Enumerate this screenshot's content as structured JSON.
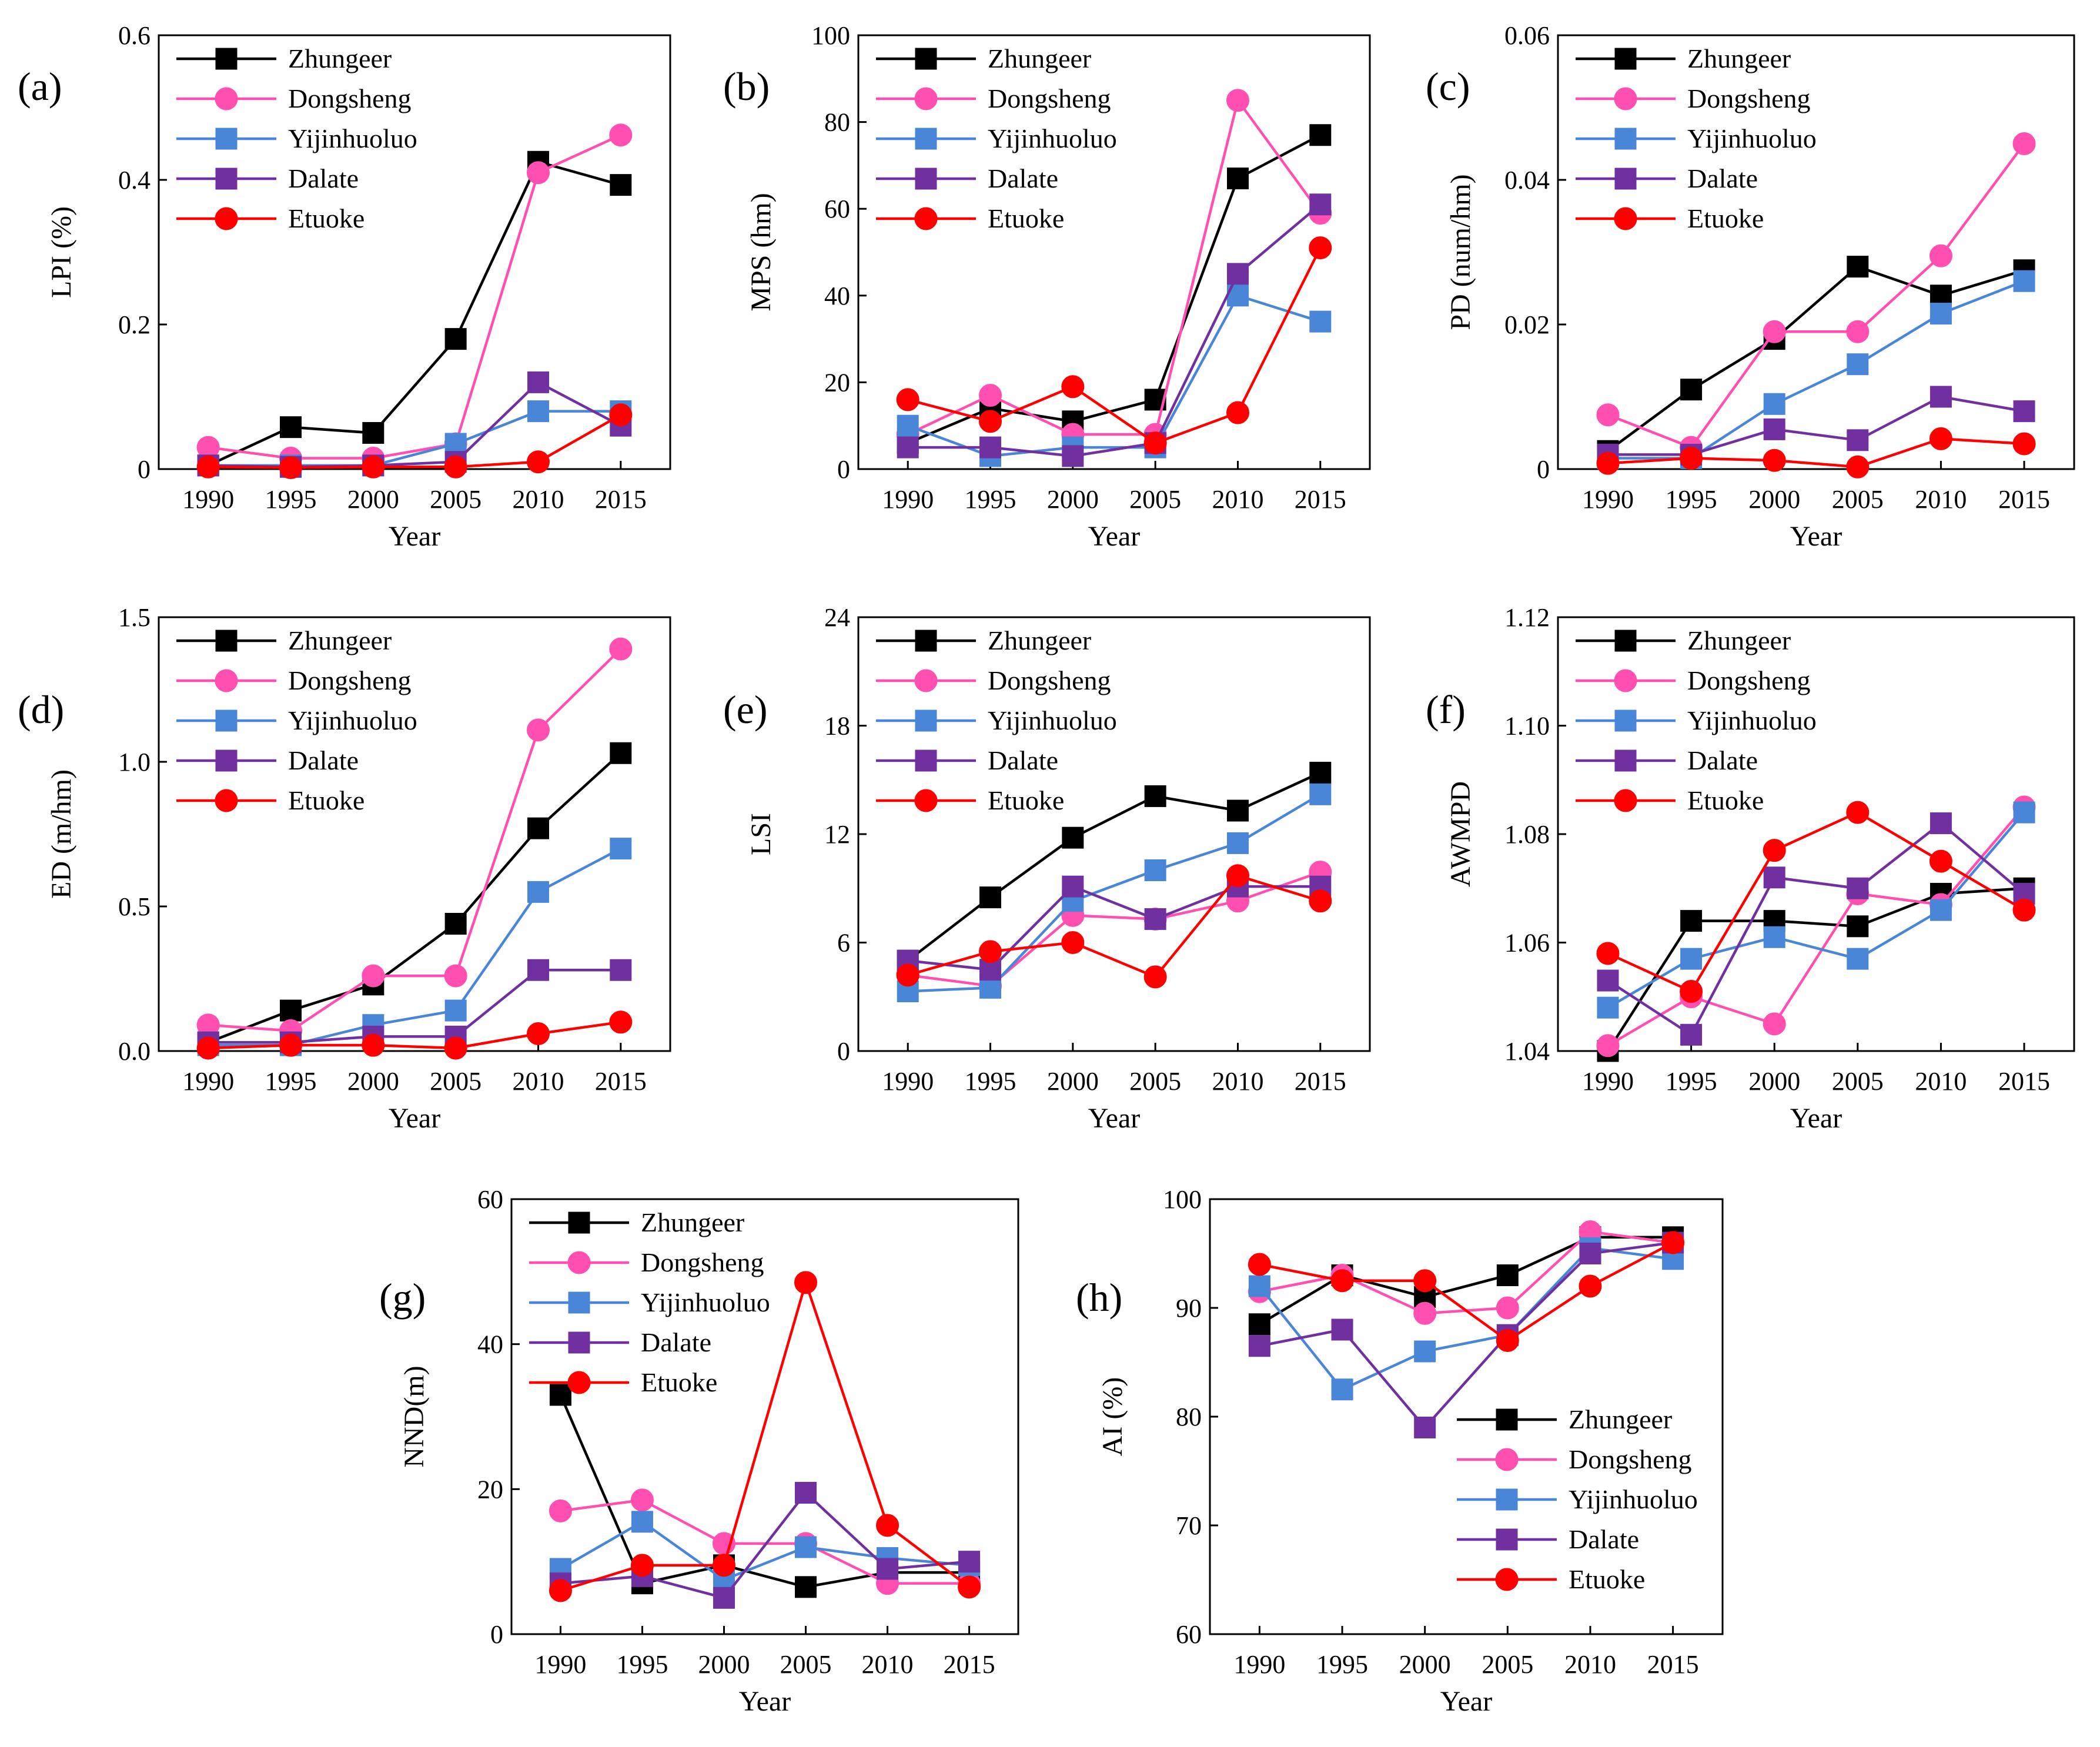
{
  "figure": {
    "series_names": [
      "Zhungeer",
      "Dongsheng",
      "Yijinhuoluo",
      "Dalate",
      "Etuoke"
    ],
    "series_colors": [
      "#000000",
      "#ff4fb0",
      "#4a86d8",
      "#7030a0",
      "#ff0000"
    ],
    "series_markers": [
      "square",
      "circle",
      "square",
      "square",
      "circle"
    ]
  },
  "chart_data": [
    {
      "type": "line",
      "label": "(a)",
      "title": "",
      "xlabel": "Year",
      "ylabel": "LPI (%)",
      "x": [
        "1990",
        "1995",
        "2000",
        "2005",
        "2010",
        "2015"
      ],
      "ylim": [
        0,
        0.6
      ],
      "yticks": [
        "0",
        "0.2",
        "0.4",
        "0.6"
      ],
      "ytick_values": [
        0,
        0.2,
        0.4,
        0.6
      ],
      "legend": "top-left",
      "series": [
        {
          "name": "Zhungeer",
          "values": [
            0.005,
            0.058,
            0.05,
            0.18,
            0.425,
            0.393
          ]
        },
        {
          "name": "Dongsheng",
          "values": [
            0.03,
            0.015,
            0.015,
            0.035,
            0.41,
            0.462
          ]
        },
        {
          "name": "Yijinhuoluo",
          "values": [
            0.005,
            0.005,
            0.005,
            0.035,
            0.08,
            0.08
          ]
        },
        {
          "name": "Dalate",
          "values": [
            0.005,
            0.003,
            0.005,
            0.01,
            0.12,
            0.06
          ]
        },
        {
          "name": "Etuoke",
          "values": [
            0.003,
            0.002,
            0.003,
            0.003,
            0.01,
            0.075
          ]
        }
      ]
    },
    {
      "type": "line",
      "label": "(b)",
      "title": "",
      "xlabel": "Year",
      "ylabel": "MPS (hm)",
      "x": [
        "1990",
        "1995",
        "2000",
        "2005",
        "2010",
        "2015"
      ],
      "ylim": [
        0,
        100
      ],
      "yticks": [
        "0",
        "20",
        "40",
        "60",
        "80",
        "100"
      ],
      "ytick_values": [
        0,
        20,
        40,
        60,
        80,
        100
      ],
      "legend": "top-left",
      "series": [
        {
          "name": "Zhungeer",
          "values": [
            6,
            14,
            11,
            16,
            67,
            77
          ]
        },
        {
          "name": "Dongsheng",
          "values": [
            8,
            17,
            8,
            8,
            85,
            59
          ]
        },
        {
          "name": "Yijinhuoluo",
          "values": [
            10,
            3,
            5,
            5,
            40,
            34
          ]
        },
        {
          "name": "Dalate",
          "values": [
            5,
            5,
            3,
            6,
            45,
            61
          ]
        },
        {
          "name": "Etuoke",
          "values": [
            16,
            11,
            19,
            6,
            13,
            51
          ]
        }
      ]
    },
    {
      "type": "line",
      "label": "(c)",
      "title": "",
      "xlabel": "Year",
      "ylabel": "PD (num/hm)",
      "x": [
        "1990",
        "1995",
        "2000",
        "2005",
        "2010",
        "2015"
      ],
      "ylim": [
        0,
        0.06
      ],
      "yticks": [
        "0",
        "0.02",
        "0.04",
        "0.06"
      ],
      "ytick_values": [
        0,
        0.02,
        0.04,
        0.06
      ],
      "legend": "top-left",
      "series": [
        {
          "name": "Zhungeer",
          "values": [
            0.0025,
            0.011,
            0.018,
            0.028,
            0.024,
            0.0275
          ]
        },
        {
          "name": "Dongsheng",
          "values": [
            0.0075,
            0.003,
            0.019,
            0.019,
            0.0295,
            0.045
          ]
        },
        {
          "name": "Yijinhuoluo",
          "values": [
            0.0015,
            0.0015,
            0.009,
            0.0145,
            0.0215,
            0.026
          ]
        },
        {
          "name": "Dalate",
          "values": [
            0.002,
            0.002,
            0.0055,
            0.004,
            0.01,
            0.008
          ]
        },
        {
          "name": "Etuoke",
          "values": [
            0.0008,
            0.0015,
            0.0012,
            0.0003,
            0.0042,
            0.0035
          ]
        }
      ]
    },
    {
      "type": "line",
      "label": "(d)",
      "title": "",
      "xlabel": "Year",
      "ylabel": "ED (m/hm)",
      "x": [
        "1990",
        "1995",
        "2000",
        "2005",
        "2010",
        "2015"
      ],
      "ylim": [
        0,
        1.5
      ],
      "yticks": [
        "0.0",
        "0.5",
        "1.0",
        "1.5"
      ],
      "ytick_values": [
        0,
        0.5,
        1.0,
        1.5
      ],
      "legend": "top-left",
      "series": [
        {
          "name": "Zhungeer",
          "values": [
            0.03,
            0.14,
            0.23,
            0.44,
            0.77,
            1.03
          ]
        },
        {
          "name": "Dongsheng",
          "values": [
            0.09,
            0.07,
            0.26,
            0.26,
            1.11,
            1.39
          ]
        },
        {
          "name": "Yijinhuoluo",
          "values": [
            0.02,
            0.02,
            0.09,
            0.14,
            0.55,
            0.7
          ]
        },
        {
          "name": "Dalate",
          "values": [
            0.03,
            0.03,
            0.05,
            0.05,
            0.28,
            0.28
          ]
        },
        {
          "name": "Etuoke",
          "values": [
            0.01,
            0.02,
            0.02,
            0.01,
            0.06,
            0.1
          ]
        }
      ]
    },
    {
      "type": "line",
      "label": "(e)",
      "title": "",
      "xlabel": "Year",
      "ylabel": "LSI",
      "x": [
        "1990",
        "1995",
        "2000",
        "2005",
        "2010",
        "2015"
      ],
      "ylim": [
        0,
        24
      ],
      "yticks": [
        "0",
        "6",
        "12",
        "18",
        "24"
      ],
      "ytick_values": [
        0,
        6,
        12,
        18,
        24
      ],
      "legend": "top-left",
      "series": [
        {
          "name": "Zhungeer",
          "values": [
            5,
            8.5,
            11.8,
            14.1,
            13.3,
            15.4
          ]
        },
        {
          "name": "Dongsheng",
          "values": [
            4.2,
            3.6,
            7.5,
            7.3,
            8.3,
            9.9
          ]
        },
        {
          "name": "Yijinhuoluo",
          "values": [
            3.3,
            3.5,
            8.3,
            10,
            11.5,
            14.2
          ]
        },
        {
          "name": "Dalate",
          "values": [
            5,
            4.5,
            9.1,
            7.3,
            9.1,
            9.1
          ]
        },
        {
          "name": "Etuoke",
          "values": [
            4.2,
            5.5,
            6,
            4.1,
            9.7,
            8.3
          ]
        }
      ]
    },
    {
      "type": "line",
      "label": "(f)",
      "title": "",
      "xlabel": "Year",
      "ylabel": "AWMPD",
      "x": [
        "1990",
        "1995",
        "2000",
        "2005",
        "2010",
        "2015"
      ],
      "ylim": [
        1.04,
        1.12
      ],
      "yticks": [
        "1.04",
        "1.06",
        "1.08",
        "1.10",
        "1.12"
      ],
      "ytick_values": [
        1.04,
        1.06,
        1.08,
        1.1,
        1.12
      ],
      "legend": "top-left",
      "series": [
        {
          "name": "Zhungeer",
          "values": [
            1.04,
            1.064,
            1.064,
            1.063,
            1.069,
            1.07
          ]
        },
        {
          "name": "Dongsheng",
          "values": [
            1.041,
            1.05,
            1.045,
            1.069,
            1.067,
            1.085
          ]
        },
        {
          "name": "Yijinhuoluo",
          "values": [
            1.048,
            1.057,
            1.061,
            1.057,
            1.066,
            1.084
          ]
        },
        {
          "name": "Dalate",
          "values": [
            1.053,
            1.043,
            1.072,
            1.07,
            1.082,
            1.069
          ]
        },
        {
          "name": "Etuoke",
          "values": [
            1.058,
            1.051,
            1.077,
            1.084,
            1.075,
            1.066
          ]
        }
      ]
    },
    {
      "type": "line",
      "label": "(g)",
      "title": "",
      "xlabel": "Year",
      "ylabel": "NND(m)",
      "x": [
        "1990",
        "1995",
        "2000",
        "2005",
        "2010",
        "2015"
      ],
      "ylim": [
        0,
        60
      ],
      "yticks": [
        "0",
        "20",
        "40",
        "60"
      ],
      "ytick_values": [
        0,
        20,
        40,
        60
      ],
      "legend": "top-left",
      "series": [
        {
          "name": "Zhungeer",
          "values": [
            33,
            7,
            9.5,
            6.5,
            8.5,
            8.5
          ]
        },
        {
          "name": "Dongsheng",
          "values": [
            17,
            18.5,
            12.5,
            12.5,
            7,
            7
          ]
        },
        {
          "name": "Yijinhuoluo",
          "values": [
            9,
            15.5,
            7.5,
            12,
            10.5,
            9.5
          ]
        },
        {
          "name": "Dalate",
          "values": [
            7,
            8,
            5,
            19.5,
            9,
            10
          ]
        },
        {
          "name": "Etuoke",
          "values": [
            6,
            9.5,
            9.5,
            48.5,
            15,
            6.5
          ]
        }
      ]
    },
    {
      "type": "line",
      "label": "(h)",
      "title": "",
      "xlabel": "Year",
      "ylabel": "AI (%)",
      "x": [
        "1990",
        "1995",
        "2000",
        "2005",
        "2010",
        "2015"
      ],
      "ylim": [
        60,
        100
      ],
      "yticks": [
        "60",
        "70",
        "80",
        "90",
        "100"
      ],
      "ytick_values": [
        60,
        70,
        80,
        90,
        100
      ],
      "legend": "bottom-right",
      "series": [
        {
          "name": "Zhungeer",
          "values": [
            88.5,
            93,
            91,
            93,
            96.5,
            96.5
          ]
        },
        {
          "name": "Dongsheng",
          "values": [
            91.5,
            93,
            89.5,
            90,
            97,
            96
          ]
        },
        {
          "name": "Yijinhuoluo",
          "values": [
            92,
            82.5,
            86,
            87.5,
            95.5,
            94.5
          ]
        },
        {
          "name": "Dalate",
          "values": [
            86.5,
            88,
            79,
            87.5,
            95,
            96
          ]
        },
        {
          "name": "Etuoke",
          "values": [
            94,
            92.5,
            92.5,
            87,
            92,
            96
          ]
        }
      ]
    }
  ]
}
